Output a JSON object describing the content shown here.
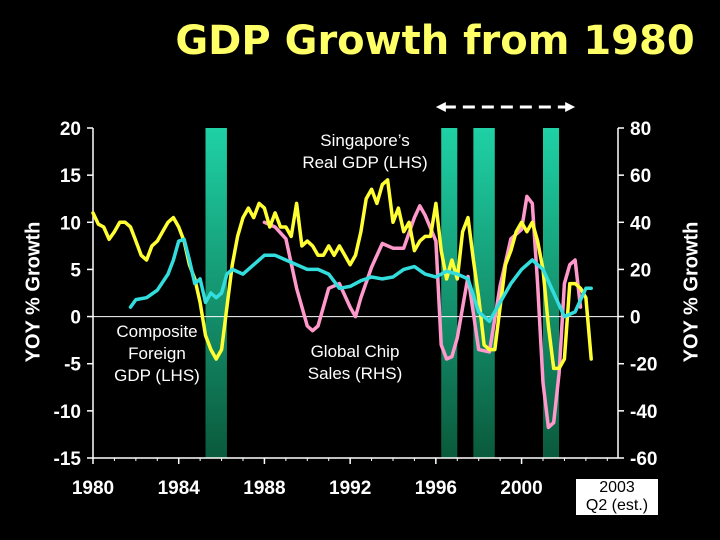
{
  "title": "GDP Growth from 1980",
  "annotations": {
    "singapore": [
      "Singapore’s",
      "Real GDP (LHS)"
    ],
    "composite": [
      "Composite",
      "Foreign",
      "GDP (LHS)"
    ],
    "chips": [
      "Global Chip",
      "Sales (RHS)"
    ],
    "estimate": [
      "2003",
      "Q2 (est.)"
    ]
  },
  "colors": {
    "singapore": "#ffff33",
    "composite": "#33dddd",
    "chips": "#ff99cc",
    "recession_bar_top": "#1fd1a5",
    "recession_bar_bottom": "#0a5a3c",
    "axis": "#ffffff",
    "background": "#000000"
  },
  "chart_data": {
    "type": "line",
    "title": "GDP Growth from 1980",
    "ylabel": "YOY % Growth",
    "y2label": "YOY % Growth",
    "xlim": [
      1980,
      2004.5
    ],
    "ylim": [
      -15,
      20
    ],
    "y2lim": [
      -60,
      80
    ],
    "xticks": [
      "1980",
      "1984",
      "1988",
      "1992",
      "1996",
      "2000"
    ],
    "yticks": [
      "20",
      "15",
      "10",
      "5",
      "0",
      "-5",
      "-10",
      "-15"
    ],
    "y2ticks": [
      "80",
      "60",
      "40",
      "20",
      "0",
      "-20",
      "-40",
      "-60"
    ],
    "shaded_periods": [
      [
        1985.25,
        1986.25
      ],
      [
        1996.25,
        1997.0
      ],
      [
        1997.75,
        1998.75
      ],
      [
        2001.0,
        2001.75
      ]
    ],
    "dashed_arrow_span": [
      1996.0,
      2002.5
    ],
    "series": [
      {
        "name": "Singapore’s Real GDP (LHS)",
        "axis": "left",
        "x": [
          1980.0,
          1980.25,
          1980.5,
          1980.75,
          1981.0,
          1981.25,
          1981.5,
          1981.75,
          1982.0,
          1982.25,
          1982.5,
          1982.75,
          1983.0,
          1983.25,
          1983.5,
          1983.75,
          1984.0,
          1984.25,
          1984.5,
          1984.75,
          1985.0,
          1985.25,
          1985.5,
          1985.75,
          1986.0,
          1986.25,
          1986.5,
          1986.75,
          1987.0,
          1987.25,
          1987.5,
          1987.75,
          1988.0,
          1988.25,
          1988.5,
          1988.75,
          1989.0,
          1989.25,
          1989.5,
          1989.75,
          1990.0,
          1990.25,
          1990.5,
          1990.75,
          1991.0,
          1991.25,
          1991.5,
          1991.75,
          1992.0,
          1992.25,
          1992.5,
          1992.75,
          1993.0,
          1993.25,
          1993.5,
          1993.75,
          1994.0,
          1994.25,
          1994.5,
          1994.75,
          1995.0,
          1995.25,
          1995.5,
          1995.75,
          1996.0,
          1996.25,
          1996.5,
          1996.75,
          1997.0,
          1997.25,
          1997.5,
          1997.75,
          1998.0,
          1998.25,
          1998.5,
          1998.75,
          1999.0,
          1999.25,
          1999.5,
          1999.75,
          2000.0,
          2000.25,
          2000.5,
          2000.75,
          2001.0,
          2001.25,
          2001.5,
          2001.75,
          2002.0,
          2002.25,
          2002.5,
          2002.75,
          2003.0,
          2003.25
        ],
        "values": [
          11.0,
          9.8,
          9.5,
          8.2,
          9.0,
          10.0,
          10.0,
          9.5,
          8.0,
          6.5,
          6.0,
          7.5,
          8.0,
          9.0,
          10.0,
          10.5,
          9.5,
          8.0,
          5.5,
          4.0,
          1.5,
          -2.0,
          -3.5,
          -4.5,
          -3.5,
          1.0,
          5.5,
          8.5,
          10.5,
          11.5,
          10.5,
          12.0,
          11.5,
          9.5,
          11.0,
          9.5,
          9.5,
          8.5,
          12.0,
          7.5,
          8.0,
          7.5,
          6.5,
          6.5,
          7.5,
          6.5,
          7.5,
          6.5,
          5.5,
          6.5,
          9.0,
          12.5,
          13.5,
          12.0,
          14.0,
          14.5,
          10.0,
          11.5,
          9.0,
          10.0,
          7.0,
          8.0,
          8.5,
          8.5,
          12.0,
          7.0,
          4.0,
          6.0,
          4.0,
          9.0,
          10.5,
          6.0,
          2.0,
          -3.0,
          -3.5,
          -3.5,
          1.0,
          5.5,
          7.0,
          9.0,
          10.0,
          9.0,
          10.0,
          8.0,
          5.0,
          -1.0,
          -5.5,
          -5.5,
          -4.5,
          3.5,
          3.5,
          3.0,
          2.0,
          -4.5
        ]
      },
      {
        "name": "Composite Foreign GDP (LHS)",
        "axis": "left",
        "x": [
          1981.75,
          1982.0,
          1982.5,
          1983.0,
          1983.5,
          1983.75,
          1984.0,
          1984.25,
          1984.5,
          1984.75,
          1985.0,
          1985.25,
          1985.5,
          1985.75,
          1986.0,
          1986.25,
          1986.5,
          1987.0,
          1987.5,
          1988.0,
          1988.5,
          1989.0,
          1989.5,
          1990.0,
          1990.5,
          1991.0,
          1991.5,
          1992.0,
          1992.5,
          1993.0,
          1993.5,
          1994.0,
          1994.5,
          1995.0,
          1995.5,
          1996.0,
          1996.5,
          1997.0,
          1997.5,
          1998.0,
          1998.5,
          1999.0,
          1999.5,
          2000.0,
          2000.5,
          2001.0,
          2001.5,
          2002.0,
          2002.5,
          2003.0,
          2003.25
        ],
        "values": [
          1.0,
          1.8,
          2.0,
          2.8,
          4.5,
          6.0,
          8.0,
          8.2,
          6.0,
          3.5,
          4.0,
          1.5,
          2.5,
          2.0,
          2.5,
          4.5,
          5.0,
          4.5,
          5.5,
          6.5,
          6.5,
          6.0,
          5.5,
          5.0,
          5.0,
          4.5,
          3.0,
          3.2,
          3.8,
          4.2,
          4.0,
          4.2,
          5.0,
          5.3,
          4.5,
          4.2,
          4.8,
          4.5,
          4.0,
          0.5,
          -0.5,
          1.5,
          3.5,
          5.0,
          6.0,
          5.0,
          2.5,
          0.0,
          0.5,
          3.0,
          3.0
        ]
      },
      {
        "name": "Global Chip Sales (RHS)",
        "axis": "right",
        "x": [
          1988.0,
          1988.5,
          1989.0,
          1989.5,
          1990.0,
          1990.25,
          1990.5,
          1991.0,
          1991.5,
          1992.0,
          1992.25,
          1992.5,
          1993.0,
          1993.5,
          1994.0,
          1994.5,
          1995.0,
          1995.25,
          1995.5,
          1996.0,
          1996.25,
          1996.5,
          1996.75,
          1997.0,
          1997.5,
          1998.0,
          1998.5,
          1999.0,
          1999.5,
          2000.0,
          2000.25,
          2000.5,
          2000.75,
          2001.0,
          2001.25,
          2001.5,
          2001.75,
          2002.0,
          2002.25,
          2002.5,
          2002.75
        ],
        "values": [
          40,
          38,
          33,
          12,
          -4,
          -6,
          -4,
          12,
          14,
          4,
          0,
          8,
          21,
          31,
          29,
          29,
          42,
          47,
          43,
          32,
          -12,
          -18,
          -17,
          -9,
          17,
          -14,
          -15,
          13,
          33,
          37,
          51,
          48,
          14,
          -28,
          -47,
          -45,
          -24,
          14,
          22,
          24,
          4
        ]
      }
    ]
  }
}
